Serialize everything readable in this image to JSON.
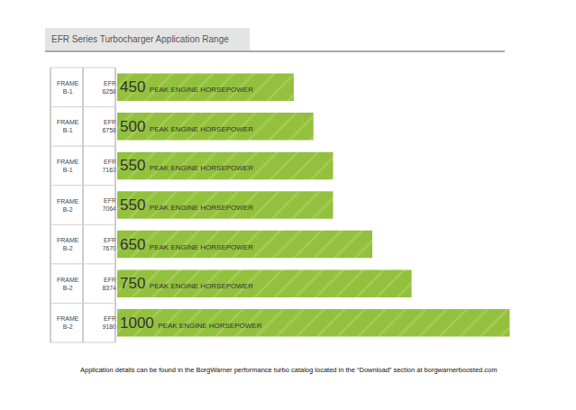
{
  "chart_data": {
    "type": "bar",
    "title": "EFR Series Turbocharger Application Range",
    "orientation": "horizontal",
    "categories": [
      "EFR 6258",
      "EFR 6758",
      "EFR 7163",
      "EFR 7064",
      "EFR 7670",
      "EFR 8374",
      "EFR 9180"
    ],
    "frames": [
      "FRAME B-1",
      "FRAME B-1",
      "FRAME B-1",
      "FRAME B-2",
      "FRAME B-2",
      "FRAME B-2",
      "FRAME B-2"
    ],
    "values": [
      450,
      500,
      550,
      550,
      650,
      750,
      1000
    ],
    "value_labels": [
      "450 PEAK ENGINE HORSEPOWER",
      "500 PEAK ENGINE HORSEPOWER",
      "550 PEAK ENGINE HORSEPOWER",
      "550 PEAK ENGINE HORSEPOWER",
      "650 PEAK ENGINE HORSEPOWER",
      "750 PEAK ENGINE HORSEPOWER",
      "1000 PEAK ENGINE HORSEPOWER"
    ],
    "data_labels": true,
    "color": "#93c13e",
    "xlim": [
      0,
      1100
    ],
    "tick_labels": "y",
    "grid": false,
    "footnote": "Application details can be found in the BorgWarner performance turbo catalog located in the “Download” section at borgwarnerboosted.com"
  }
}
